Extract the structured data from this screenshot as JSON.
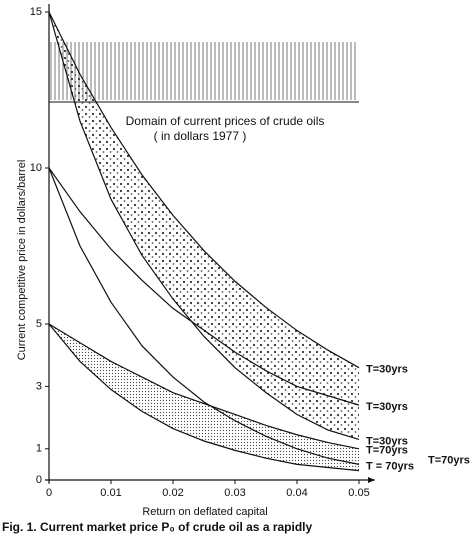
{
  "chart_data": {
    "type": "line",
    "annotation": "Domain of current prices of crude oils",
    "annotation_sub": "( in dollars 1977 )",
    "xlabel": "Return on deflated capital",
    "ylabel": "Current competitive price in dollars/barrel",
    "caption": "Fig. 1. Current market price P₀ of crude oil as a rapidly",
    "x": [
      0,
      0.005,
      0.01,
      0.015,
      0.02,
      0.025,
      0.03,
      0.035,
      0.04,
      0.045,
      0.05
    ],
    "series": [
      {
        "name": "T=30yrs",
        "color": "#111111",
        "values": [
          15,
          13.0,
          11.3,
          9.78,
          8.48,
          7.35,
          6.37,
          5.53,
          4.79,
          4.16,
          3.6
        ]
      },
      {
        "name": "T=30yrs",
        "color": "#111111",
        "values": [
          10,
          8.6,
          7.4,
          6.4,
          5.5,
          4.8,
          4.1,
          3.5,
          3.0,
          2.7,
          2.4
        ]
      },
      {
        "name": "T=30yrs",
        "color": "#111111",
        "values": [
          15,
          11.5,
          9.0,
          7.2,
          5.8,
          4.6,
          3.6,
          2.8,
          2.1,
          1.6,
          1.3
        ]
      },
      {
        "name": "T=70yrs",
        "color": "#111111",
        "values": [
          5,
          4.4,
          3.8,
          3.3,
          2.8,
          2.45,
          2.1,
          1.75,
          1.45,
          1.2,
          1.0
        ]
      },
      {
        "name": "T = 70yrs",
        "color": "#111111",
        "values": [
          10,
          7.5,
          5.7,
          4.3,
          3.3,
          2.5,
          1.9,
          1.4,
          1.0,
          0.7,
          0.5
        ]
      },
      {
        "name": "T=70yrs",
        "color": "#111111",
        "values": [
          5,
          3.8,
          2.9,
          2.2,
          1.65,
          1.25,
          0.95,
          0.7,
          0.5,
          0.4,
          0.3
        ]
      }
    ],
    "xlim": [
      0,
      0.05
    ],
    "ylim": [
      0,
      15
    ],
    "xticks": [
      0,
      0.01,
      0.02,
      0.03,
      0.04,
      0.05
    ],
    "yticks": [
      0,
      1,
      3,
      5,
      10,
      15
    ]
  }
}
